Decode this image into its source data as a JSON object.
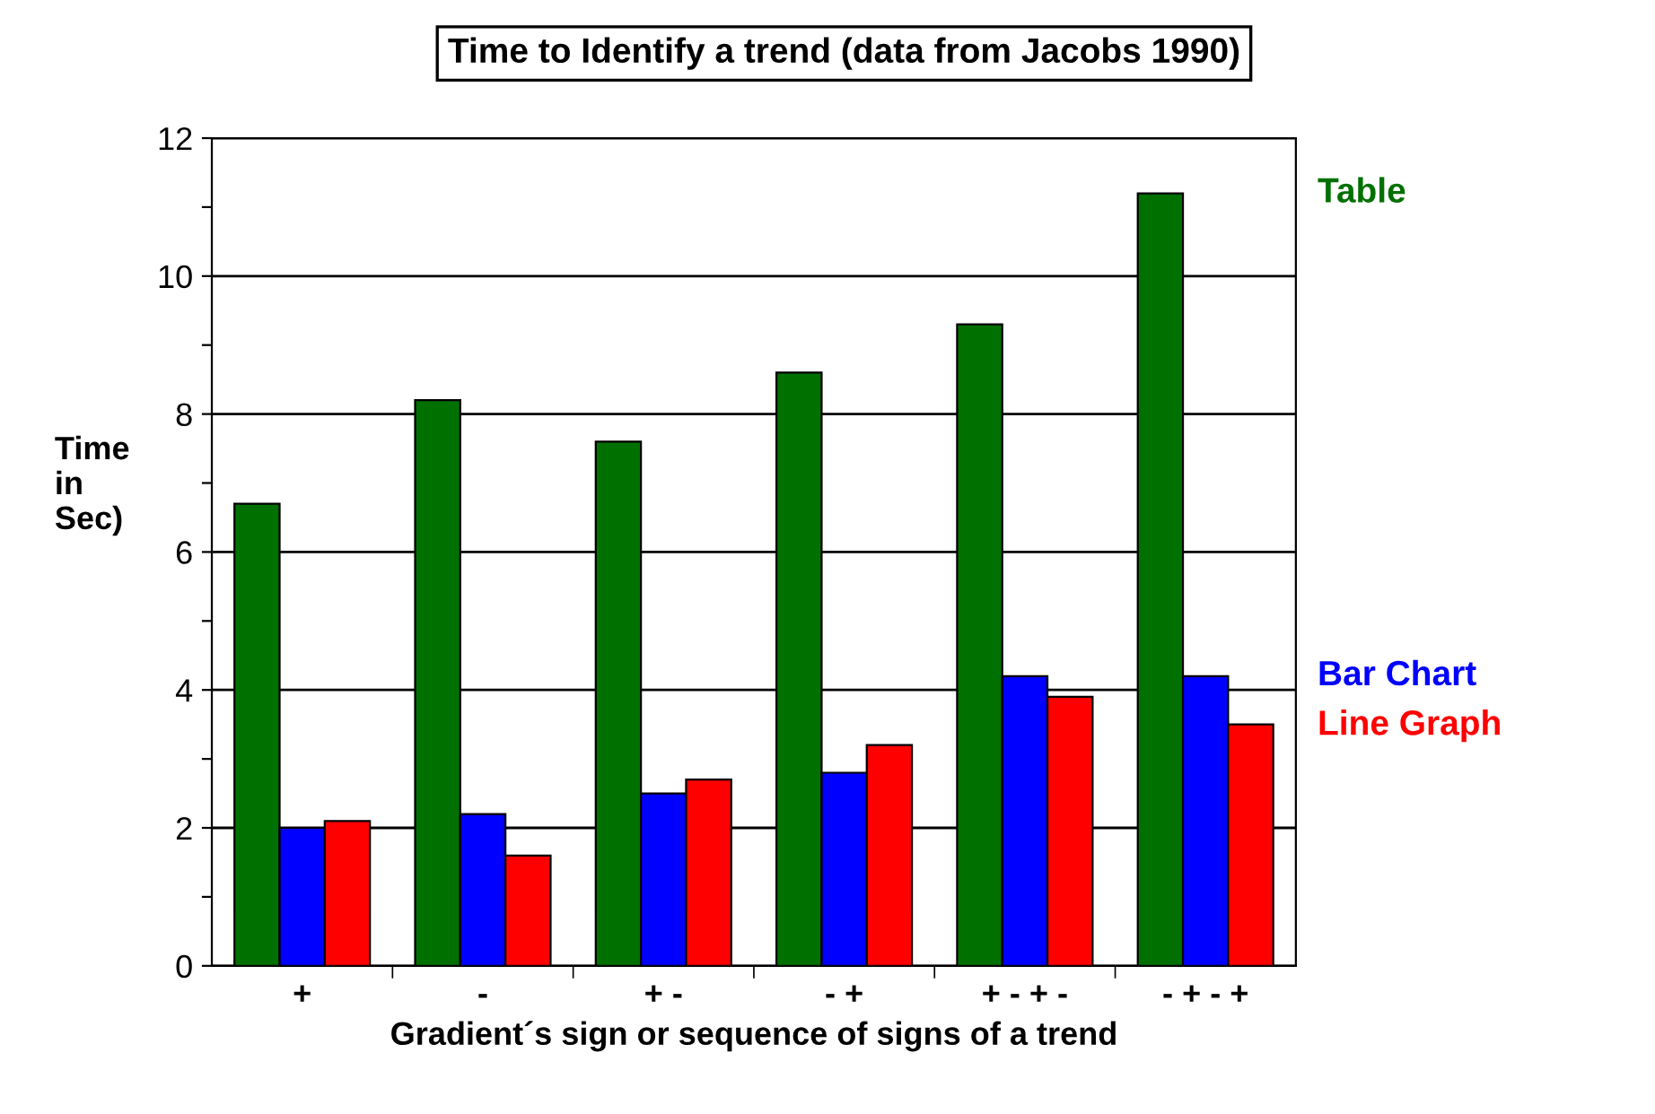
{
  "chart_data": {
    "type": "bar",
    "title": "Time to Identify a trend (data from Jacobs 1990)",
    "xlabel": "Gradient´s sign or sequence of signs of a trend",
    "ylabel": "Time\nin\nSec)",
    "categories": [
      "+",
      "-",
      "+ -",
      "- +",
      "+ - + -",
      "- + - +"
    ],
    "series": [
      {
        "name": "Table",
        "color": "#007000",
        "values": [
          6.7,
          8.2,
          7.6,
          8.6,
          9.3,
          11.2
        ]
      },
      {
        "name": "Bar Chart",
        "color": "#0000ff",
        "values": [
          2.0,
          2.2,
          2.5,
          2.8,
          4.2,
          4.2
        ]
      },
      {
        "name": "Line Graph",
        "color": "#ff0000",
        "values": [
          2.1,
          1.6,
          2.7,
          3.2,
          3.9,
          3.5
        ]
      }
    ],
    "ylim": [
      0,
      12
    ],
    "yticks": [
      0,
      {
        "value": 1,
        "label": null
      },
      2,
      {
        "value": 3,
        "label": null
      },
      4,
      {
        "value": 5,
        "label": null
      },
      6,
      {
        "value": 7,
        "label": null
      },
      8,
      {
        "value": 9,
        "label": null
      },
      10,
      {
        "value": 11,
        "label": null
      },
      12
    ],
    "grid": "y",
    "legend": "right"
  }
}
